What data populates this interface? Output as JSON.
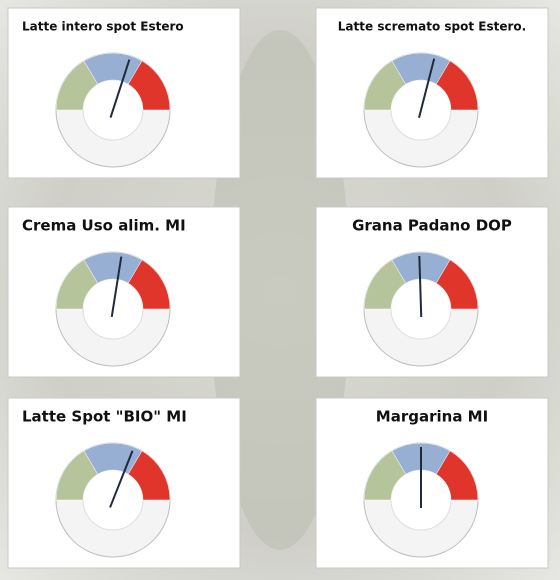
{
  "chart_data": [
    {
      "type": "gauge",
      "title": "Latte intero spot Estero",
      "value": 60,
      "ylim": [
        0,
        100
      ],
      "bands": [
        33,
        34,
        33
      ],
      "band_colors": [
        "#b5c49a",
        "#98afd4",
        "#e0352b"
      ]
    },
    {
      "type": "gauge",
      "title": "Latte scremato spot Estero.",
      "value": 58,
      "ylim": [
        0,
        100
      ],
      "bands": [
        33,
        34,
        33
      ],
      "band_colors": [
        "#b5c49a",
        "#98afd4",
        "#e0352b"
      ]
    },
    {
      "type": "gauge",
      "title": "Crema Uso alim. MI",
      "value": 55,
      "ylim": [
        0,
        100
      ],
      "bands": [
        33,
        34,
        33
      ],
      "band_colors": [
        "#b5c49a",
        "#98afd4",
        "#e0352b"
      ]
    },
    {
      "type": "gauge",
      "title": "Grana Padano DOP",
      "value": 49,
      "ylim": [
        0,
        100
      ],
      "bands": [
        33,
        34,
        33
      ],
      "band_colors": [
        "#b5c49a",
        "#98afd4",
        "#e0352b"
      ]
    },
    {
      "type": "gauge",
      "title": "Latte Spot \"BIO\" MI",
      "value": 62,
      "ylim": [
        0,
        100
      ],
      "bands": [
        33,
        34,
        33
      ],
      "band_colors": [
        "#b5c49a",
        "#98afd4",
        "#e0352b"
      ]
    },
    {
      "type": "gauge",
      "title": "Margarina MI",
      "value": 50,
      "ylim": [
        0,
        100
      ],
      "bands": [
        33,
        34,
        33
      ],
      "band_colors": [
        "#b5c49a",
        "#98afd4",
        "#e0352b"
      ]
    }
  ]
}
